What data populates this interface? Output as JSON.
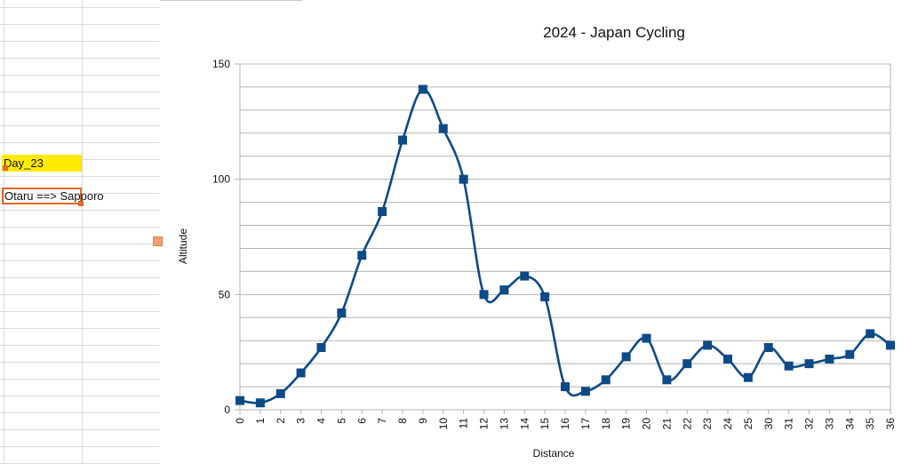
{
  "sheet": {
    "day_cell": "Day_23",
    "route_cell": "Otaru ==> Sapporo"
  },
  "chart_data": {
    "type": "line",
    "title": "2024 - Japan Cycling",
    "xlabel": "Distance",
    "ylabel": "Altitude",
    "ylim": [
      0,
      150
    ],
    "yticks": [
      0,
      50,
      100,
      150
    ],
    "grid": true,
    "smooth": true,
    "series_color": "#0d4a86",
    "categories": [
      "0",
      "1",
      "2",
      "3",
      "4",
      "5",
      "6",
      "7",
      "8",
      "9",
      "10",
      "11",
      "12",
      "13",
      "14",
      "15",
      "16",
      "17",
      "18",
      "19",
      "20",
      "21",
      "22",
      "23",
      "24",
      "25",
      "30",
      "31",
      "32",
      "33",
      "34",
      "35",
      "36"
    ],
    "values": [
      4,
      3,
      7,
      16,
      27,
      42,
      67,
      86,
      117,
      139,
      122,
      100,
      50,
      52,
      58,
      49,
      10,
      8,
      13,
      23,
      31,
      13,
      20,
      28,
      22,
      14,
      27,
      19,
      20,
      22,
      24,
      33,
      28
    ]
  }
}
